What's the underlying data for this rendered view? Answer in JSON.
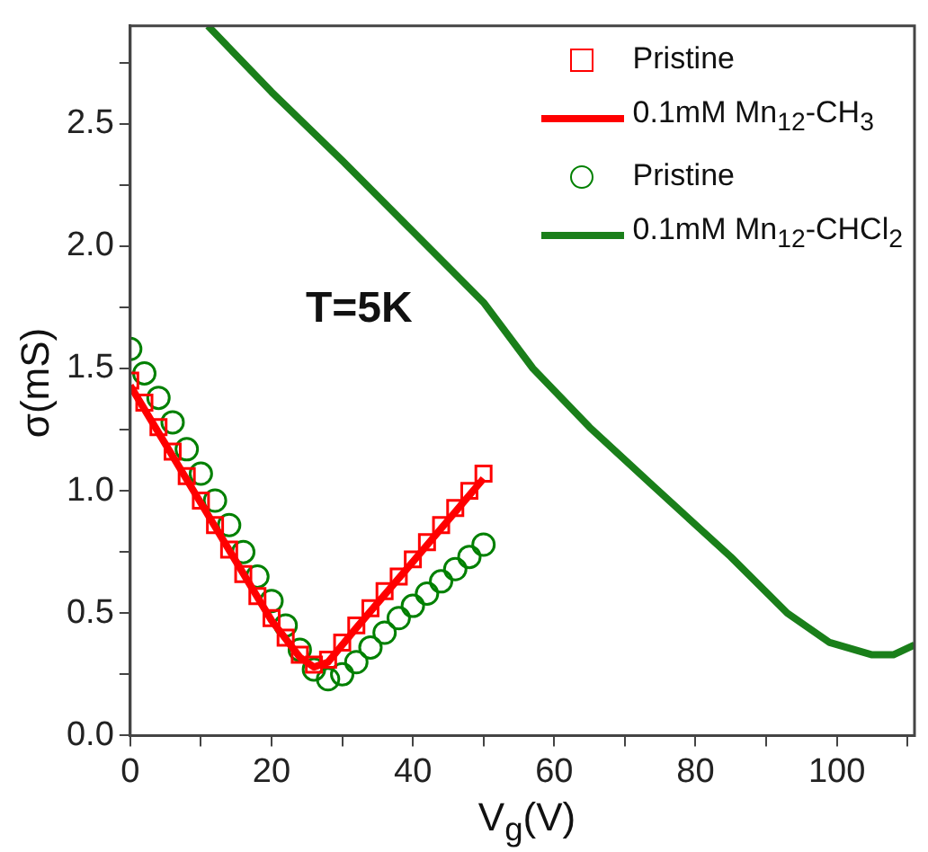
{
  "chart_data": {
    "type": "line",
    "xlabel": "V$_{g}$(V)",
    "ylabel": "σ(mS)",
    "annotations": [
      "T=5K"
    ],
    "xlim": [
      0,
      111
    ],
    "xticks": [
      0,
      {
        "value": 10,
        "label": null
      },
      20,
      {
        "value": 30,
        "label": null
      },
      40,
      {
        "value": 50,
        "label": null
      },
      60,
      {
        "value": 70,
        "label": null
      },
      80,
      {
        "value": 90,
        "label": null
      },
      100,
      {
        "value": 110,
        "label": null
      }
    ],
    "ylim": [
      0,
      2.9
    ],
    "yticks": [
      {
        "value": 0,
        "label": "0.0"
      },
      {
        "value": 0.25,
        "label": null
      },
      0.5,
      {
        "value": 0.75,
        "label": null
      },
      {
        "value": 1,
        "label": "1.0"
      },
      {
        "value": 1.25,
        "label": null
      },
      1.5,
      {
        "value": 1.75,
        "label": null
      },
      {
        "value": 2,
        "label": "2.0"
      },
      {
        "value": 2.25,
        "label": null
      },
      2.5,
      {
        "value": 2.75,
        "label": null
      }
    ],
    "grid": false,
    "legend": "top right",
    "series": [
      {
        "name": "Pristine",
        "type": "scatter",
        "marker": "square",
        "color": "#ff0000",
        "x": [
          0,
          2,
          4,
          6,
          8,
          10,
          12,
          14,
          16,
          18,
          20,
          22,
          24,
          26,
          28,
          30,
          32,
          34,
          36,
          38,
          40,
          42,
          44,
          46,
          48,
          50
        ],
        "values": [
          1.45,
          1.36,
          1.26,
          1.16,
          1.06,
          0.96,
          0.86,
          0.76,
          0.66,
          0.57,
          0.48,
          0.4,
          0.33,
          0.29,
          0.31,
          0.38,
          0.45,
          0.52,
          0.59,
          0.65,
          0.72,
          0.79,
          0.86,
          0.93,
          1.0,
          1.07
        ]
      },
      {
        "name": "0.1mM Mn$_{12}$-CH$_{3}$",
        "type": "line",
        "marker": "none",
        "color": "#ff0000",
        "x": [
          0,
          10,
          20,
          24,
          26,
          28,
          32,
          40,
          50
        ],
        "values": [
          1.43,
          0.95,
          0.47,
          0.32,
          0.28,
          0.3,
          0.44,
          0.71,
          1.05
        ]
      },
      {
        "name": "Pristine",
        "type": "scatter",
        "marker": "circle",
        "color": "#008000",
        "x": [
          0,
          2,
          4,
          6,
          8,
          10,
          12,
          14,
          16,
          18,
          20,
          22,
          24,
          26,
          28,
          30,
          32,
          34,
          36,
          38,
          40,
          42,
          44,
          46,
          48,
          50
        ],
        "values": [
          1.58,
          1.48,
          1.38,
          1.28,
          1.17,
          1.07,
          0.96,
          0.86,
          0.75,
          0.65,
          0.55,
          0.45,
          0.35,
          0.27,
          0.23,
          0.25,
          0.3,
          0.36,
          0.42,
          0.48,
          0.53,
          0.58,
          0.63,
          0.68,
          0.73,
          0.78
        ]
      },
      {
        "name": "0.1mM Mn$_{12}$-CHCl$_{2}$",
        "type": "line",
        "marker": "none",
        "color": "#1a7f1a",
        "x": [
          11,
          20,
          30,
          40,
          50,
          57,
          65,
          74,
          85,
          93,
          99,
          105,
          108,
          111
        ],
        "values": [
          2.9,
          2.63,
          2.35,
          2.06,
          1.77,
          1.5,
          1.26,
          1.02,
          0.73,
          0.5,
          0.38,
          0.33,
          0.33,
          0.37
        ]
      }
    ]
  }
}
